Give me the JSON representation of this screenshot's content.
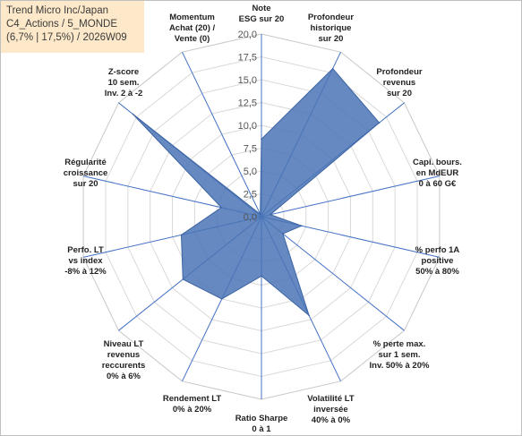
{
  "title_box": {
    "line1": "Trend Micro Inc/Japan",
    "line2": "C4_Actions / 5_MONDE",
    "line3": "(6,7% | 17,5%) / 2026W09"
  },
  "colors": {
    "fill": "#4a74b5",
    "stroke": "#3b63a3",
    "grid": "#d9d9d9",
    "spoke": "#4472c4",
    "title_bg": "#fde9c9"
  },
  "chart_data": {
    "type": "radar",
    "title": "",
    "rlim": [
      0,
      20
    ],
    "ticks": [
      0,
      2.5,
      5,
      7.5,
      10,
      12.5,
      15,
      17.5,
      20
    ],
    "tick_labels": [
      "0,0",
      "2,5",
      "5,0",
      "7,5",
      "10,0",
      "12,5",
      "15,0",
      "17,5",
      "20,0"
    ],
    "grid": true,
    "categories": [
      [
        "Note",
        "ESG sur 20"
      ],
      [
        "Profondeur",
        "historique",
        "sur 20"
      ],
      [
        "Profondeur",
        "revenus",
        "sur 20"
      ],
      [
        "Capi. bours.",
        "en MdEUR",
        "0 à 60 G€"
      ],
      [
        "% perfo 1A",
        "positive",
        "50% à 80%"
      ],
      [
        "% perte max.",
        "sur 1 sem.",
        "Inv. 50% à 20%"
      ],
      [
        "Volatilité LT",
        "inversée",
        "40% à 0%"
      ],
      [
        "Ratio Sharpe",
        "0 à 1"
      ],
      [
        "Rendement LT",
        "0% à 20%"
      ],
      [
        "Niveau LT",
        "revenus",
        "reccurents",
        "0% à 6%"
      ],
      [
        "Perfo. LT",
        "vs index",
        "-8% à 12%"
      ],
      [
        "Régularité",
        "croissance",
        "sur 20"
      ],
      [
        "Z-score",
        "10 sem.",
        "Inv. 2 à -2"
      ],
      [
        "Momentum",
        "Achat (20) /",
        "Vente (0)"
      ]
    ],
    "series": [
      {
        "values": [
          8.5,
          18.0,
          16.5,
          1.0,
          4.5,
          3.0,
          12.0,
          6.5,
          10.0,
          11.0,
          9.0,
          4.5,
          18.0,
          0.3
        ]
      }
    ]
  }
}
